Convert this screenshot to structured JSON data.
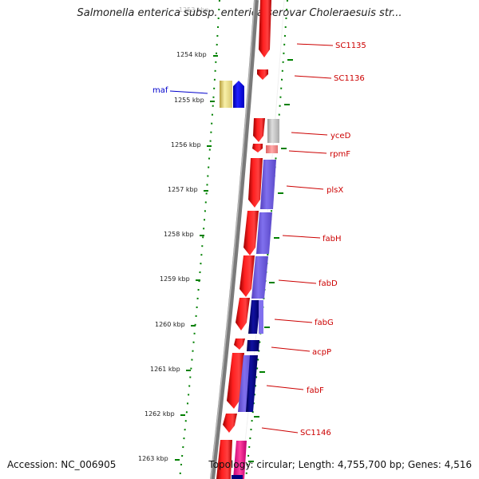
{
  "title": "Salmonella enterica subsp. enterica serovar Choleraesuis str...",
  "accession": "Accession: NC_006905",
  "summary": "Topology: circular; Length: 4,755,700 bp; Genes: 4,516",
  "ticks": [
    {
      "label": "1253 kbp",
      "faded": true
    },
    {
      "label": "1254 kbp"
    },
    {
      "label": "1255 kbp"
    },
    {
      "label": "1256 kbp"
    },
    {
      "label": "1257 kbp"
    },
    {
      "label": "1258 kbp"
    },
    {
      "label": "1259 kbp"
    },
    {
      "label": "1260 kbp"
    },
    {
      "label": "1261 kbp"
    },
    {
      "label": "1262 kbp"
    },
    {
      "label": "1263 kbp"
    }
  ],
  "genes": [
    {
      "name": "SC1135",
      "color": "#cc0000"
    },
    {
      "name": "SC1136",
      "color": "#cc0000"
    },
    {
      "name": "maf",
      "color": "#0000cc"
    },
    {
      "name": "yceD",
      "color": "#cc0000"
    },
    {
      "name": "rpmF",
      "color": "#cc0000"
    },
    {
      "name": "plsX",
      "color": "#cc0000"
    },
    {
      "name": "fabH",
      "color": "#cc0000"
    },
    {
      "name": "fabD",
      "color": "#cc0000"
    },
    {
      "name": "fabG",
      "color": "#cc0000"
    },
    {
      "name": "acpP",
      "color": "#cc0000"
    },
    {
      "name": "fabF",
      "color": "#cc0000"
    },
    {
      "name": "SC1146",
      "color": "#cc0000"
    }
  ],
  "colors": {
    "cds": "#ff0000",
    "grey_feature": "#c8c8c8",
    "pink_feature": "#ff8888",
    "purple_feature": "#7b68ee",
    "navy_feature": "#000080",
    "maf_yellow": "#f0e68c",
    "maf_blue": "#0000ff",
    "magenta_feature": "#ff1493",
    "backbone": "#7a7a7a",
    "tick_marks": "#008000"
  }
}
